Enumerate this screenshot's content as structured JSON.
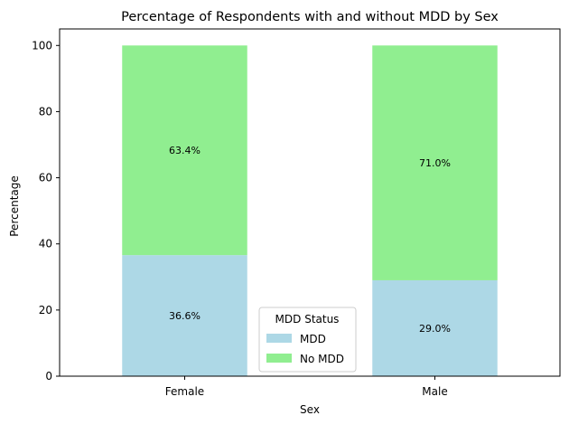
{
  "chart_data": {
    "type": "bar",
    "stacked": true,
    "title": "Percentage of Respondents with and without MDD by Sex",
    "xlabel": "Sex",
    "ylabel": "Percentage",
    "categories": [
      "Female",
      "Male"
    ],
    "series": [
      {
        "name": "MDD",
        "values": [
          36.6,
          29.0
        ],
        "labels": [
          "36.6%",
          "29.0%"
        ],
        "color": "#add8e6"
      },
      {
        "name": "No MDD",
        "values": [
          63.4,
          71.0
        ],
        "labels": [
          "63.4%",
          "71.0%"
        ],
        "color": "#90ee90"
      }
    ],
    "ylim": [
      0,
      105
    ],
    "yticks": [
      0,
      20,
      40,
      60,
      80,
      100
    ],
    "grid": false,
    "legend": {
      "title": "MDD Status",
      "placement": "lower-center"
    }
  }
}
